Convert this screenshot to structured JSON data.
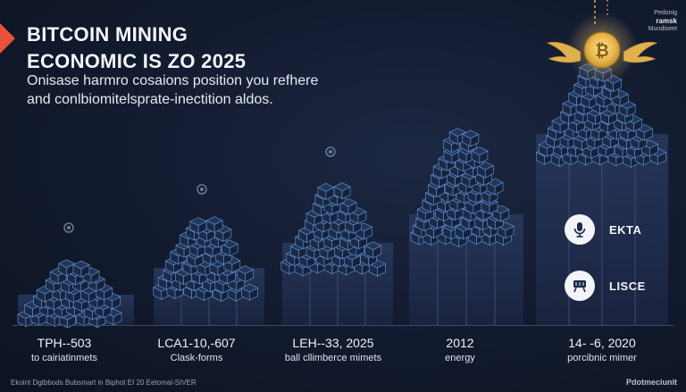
{
  "header": {
    "title_line1": "BITCOIN MINING",
    "title_line2": "ECONOMIC IS ZO 2025",
    "subtitle_line1": "Onisase harmro cosaions position you refhere",
    "subtitle_line2": "and conlbiomitelsprate-inectition aldos."
  },
  "brand": {
    "line1": "Pedonig",
    "line2": "ramsk",
    "line3": "Mundiseet"
  },
  "legend": [
    {
      "label": "EKTA",
      "icon": "microphone-icon"
    },
    {
      "label": "LISCE",
      "icon": "cart-icon"
    }
  ],
  "stages": [
    {
      "line1": "TPH--503",
      "line2": "to cairiatinmets"
    },
    {
      "line1": "LCA1-10,-607",
      "line2": "Clask-forms"
    },
    {
      "line1": "LEH--33, 2025",
      "line2": "ball cllimberce mimets"
    },
    {
      "line1": "2012",
      "line2": "energy"
    },
    {
      "line1": "14- -6, 2020",
      "line2": "porcibnic mimer"
    }
  ],
  "footer": {
    "left": "Ekoint Dgtbbods Bubsmart in Biphot EI 20 Eetomal-SIVER",
    "right": "Pdotmeciunit"
  },
  "colors": {
    "accent": "#e8523a",
    "cube_stroke": "#5a8ec9",
    "cube_fill": "#1b2a48",
    "gold": "#e8b64a"
  }
}
